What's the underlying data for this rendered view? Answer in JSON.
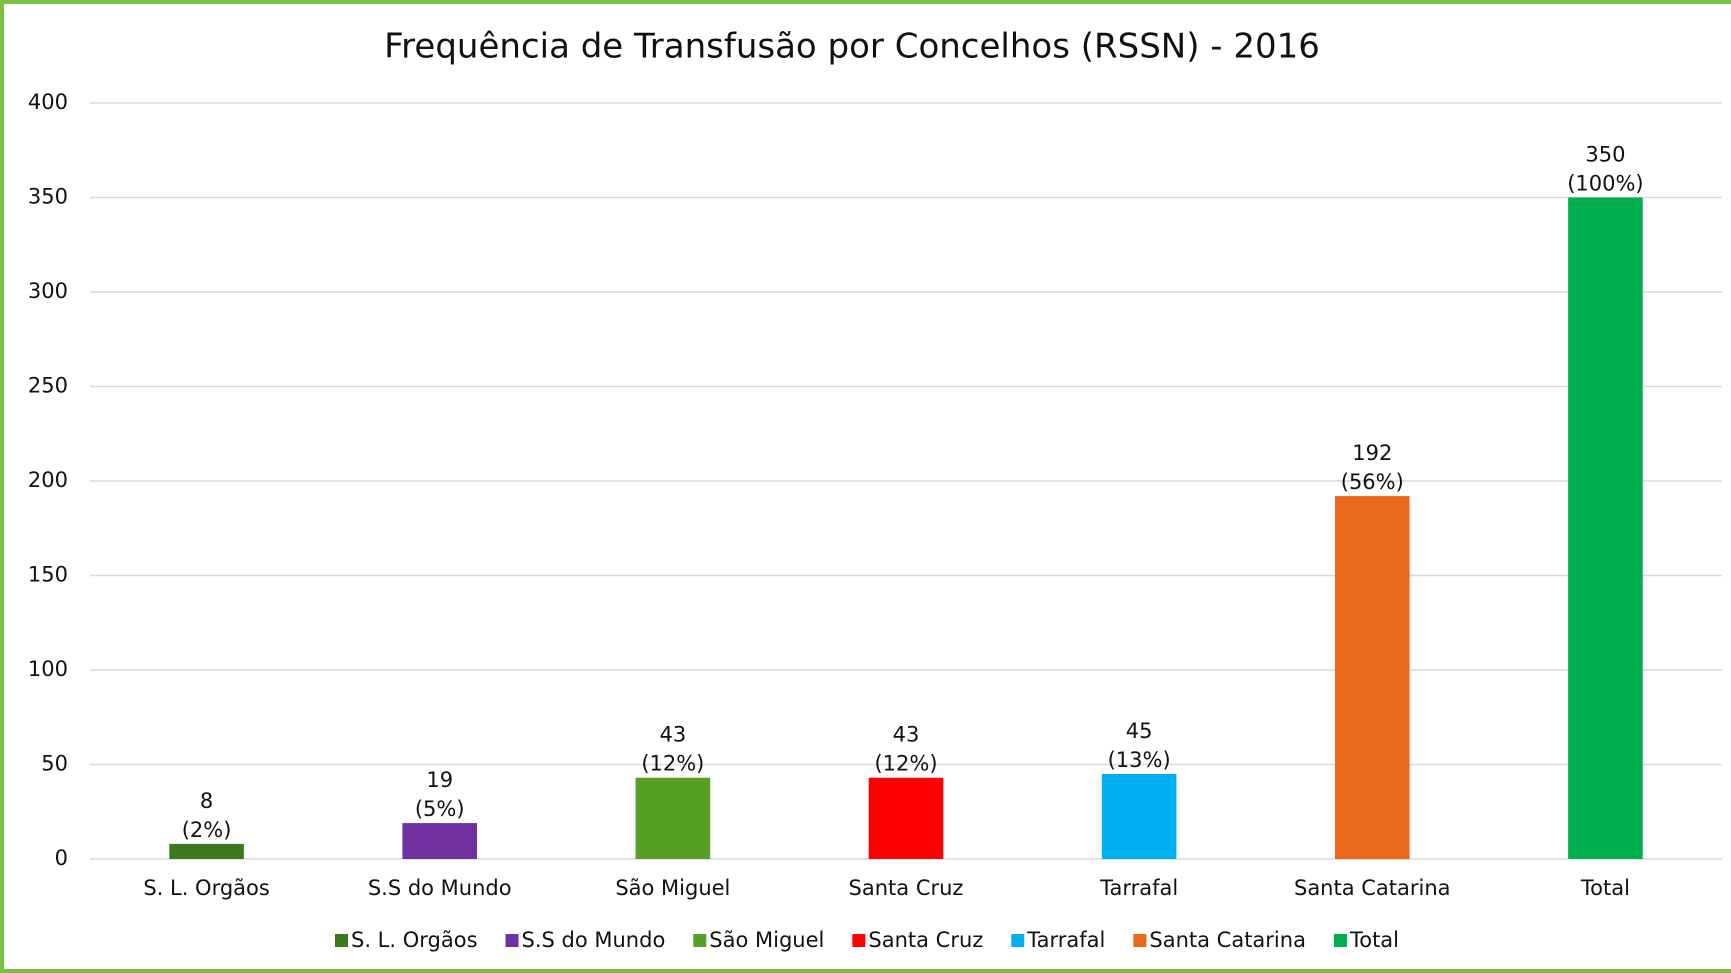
{
  "chart_data": {
    "type": "bar",
    "title": "Frequência de Transfusão por Concelhos (RSSN) - 2016",
    "categories": [
      "S. L. Orgãos",
      "S.S do Mundo",
      "São Miguel",
      "Santa Cruz",
      "Tarrafal",
      "Santa Catarina",
      "Total"
    ],
    "values": [
      8,
      19,
      43,
      43,
      45,
      192,
      350
    ],
    "value_labels": [
      "8\n(2%)",
      "19\n(5%)",
      "43\n(12%)",
      "43\n(12%)",
      "45\n(13%)",
      "192\n(56%)",
      "350\n(100%)"
    ],
    "colors": [
      "#3d7a1e",
      "#7030a0",
      "#56a125",
      "#ff0000",
      "#00b0f0",
      "#e8691c",
      "#00b050"
    ],
    "ylim": [
      0,
      400
    ],
    "yticks": [
      0,
      50,
      100,
      150,
      200,
      250,
      300,
      350,
      400
    ],
    "grid": true,
    "legend": "bottom"
  }
}
